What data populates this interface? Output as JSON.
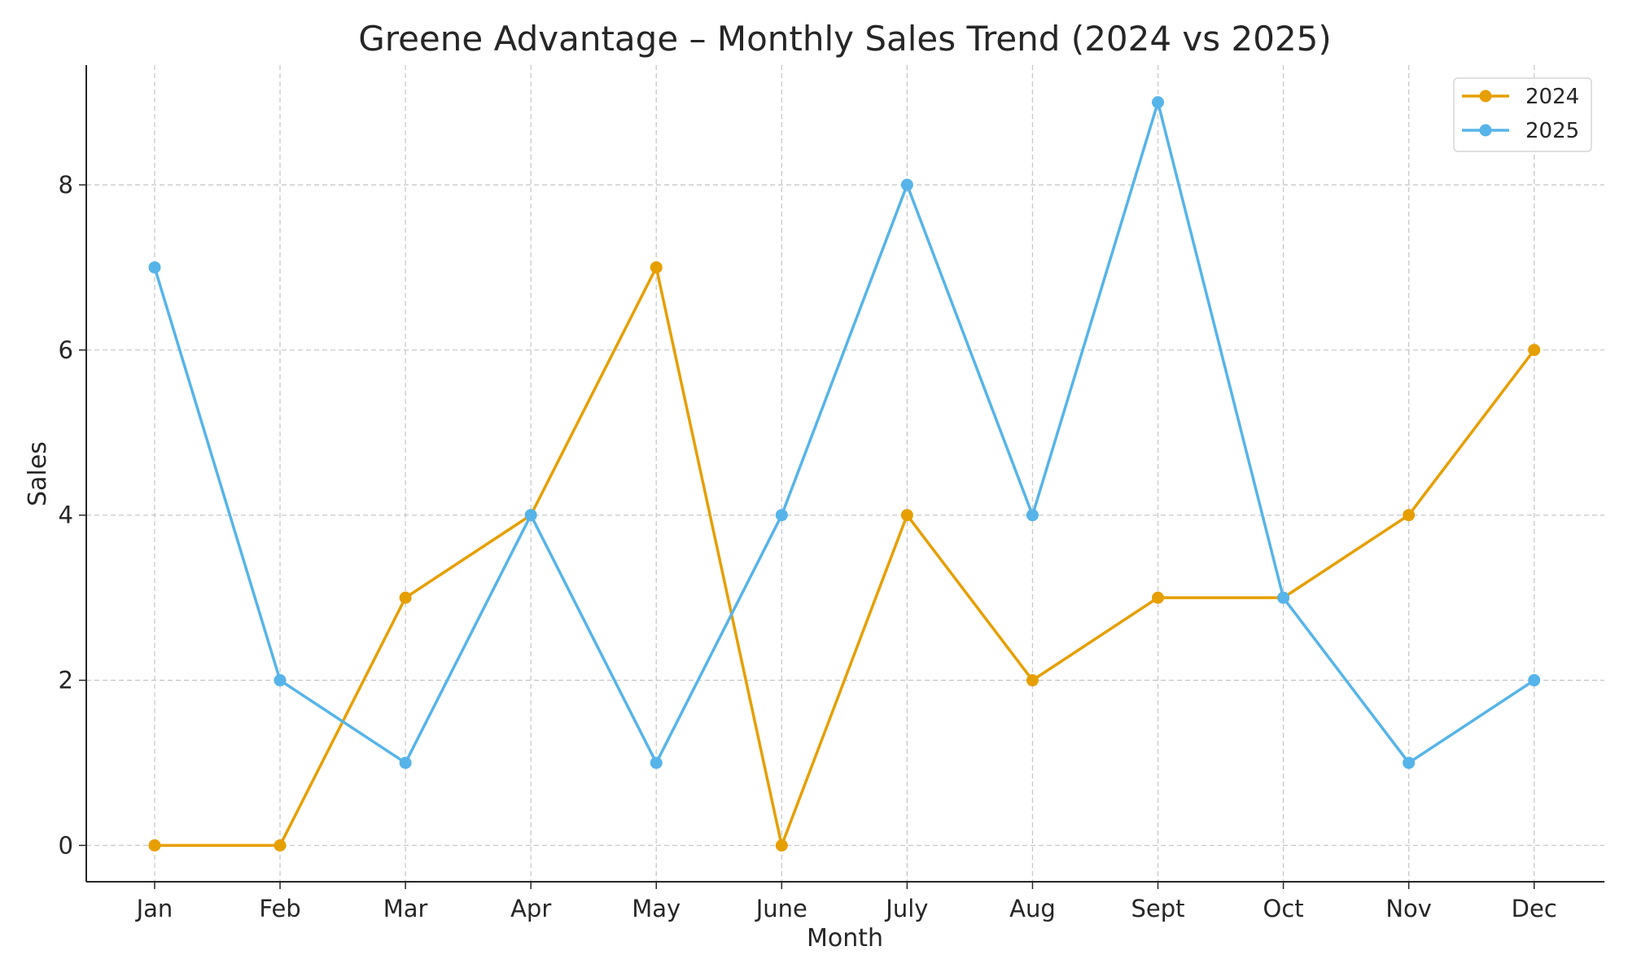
{
  "chart_data": {
    "type": "line",
    "title": "Greene Advantage – Monthly Sales Trend (2024 vs 2025)",
    "xlabel": "Month",
    "ylabel": "Sales",
    "categories": [
      "Jan",
      "Feb",
      "Mar",
      "Apr",
      "May",
      "June",
      "July",
      "Aug",
      "Sept",
      "Oct",
      "Nov",
      "Dec"
    ],
    "series": [
      {
        "name": "2024",
        "color": "#E69F00",
        "values": [
          0,
          0,
          3,
          4,
          7,
          0,
          4,
          2,
          3,
          3,
          4,
          6
        ]
      },
      {
        "name": "2025",
        "color": "#56B4E9",
        "values": [
          7,
          2,
          1,
          4,
          1,
          4,
          8,
          4,
          9,
          3,
          1,
          2
        ]
      }
    ],
    "yticks": [
      0,
      2,
      4,
      6,
      8
    ],
    "ylim": [
      -0.44,
      9.45
    ],
    "grid": true,
    "legend": "top-right",
    "markers": "circle"
  }
}
